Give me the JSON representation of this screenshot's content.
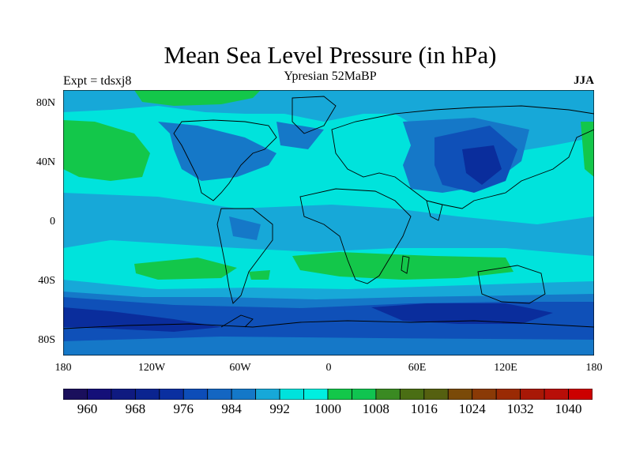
{
  "title": "Mean Sea Level Pressure (in hPa)",
  "subtitle": "Ypresian  52MaBP",
  "left_label": "Expt = tdsxj8",
  "right_label": "JJA",
  "axes": {
    "lat_ticks": [
      "80N",
      "40N",
      "0",
      "40S",
      "80S"
    ],
    "lon_ticks": [
      "180",
      "120W",
      "60W",
      "0",
      "60E",
      "120E",
      "180"
    ]
  },
  "colorbar": {
    "labels": [
      "960",
      "968",
      "976",
      "984",
      "992",
      "1000",
      "1008",
      "1016",
      "1024",
      "1032",
      "1040"
    ],
    "colors": [
      "#1a0f5c",
      "#140f78",
      "#0f1a80",
      "#0a2490",
      "#0a2fa0",
      "#0d4db8",
      "#1466c2",
      "#1478c8",
      "#17a8d8",
      "#00e2dc",
      "#00efe0",
      "#13c74a",
      "#10c450",
      "#3a8a22",
      "#4a6e14",
      "#556010",
      "#7a4a08",
      "#8a3a06",
      "#9a2a04",
      "#a81806",
      "#b80e08",
      "#cc0000"
    ]
  },
  "map_colors": {
    "deep_low": "#0a2d9c",
    "low": "#0f50b8",
    "mid_low": "#1578c8",
    "near_mean": "#17a8d8",
    "mean": "#00e3dc",
    "high": "#13c74a",
    "coast": "#000000"
  }
}
